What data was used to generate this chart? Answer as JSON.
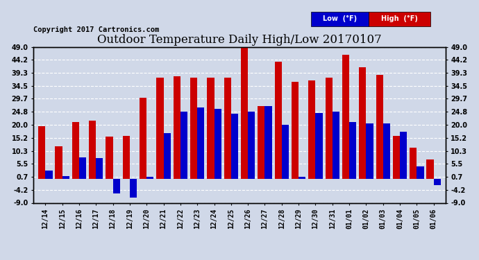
{
  "title": "Outdoor Temperature Daily High/Low 20170107",
  "copyright": "Copyright 2017 Cartronics.com",
  "legend_low": "Low  (°F)",
  "legend_high": "High  (°F)",
  "low_color": "#0000cc",
  "high_color": "#cc0000",
  "background_color": "#d0d8e8",
  "plot_bg_color": "#d0d8e8",
  "grid_color": "#ffffff",
  "dates": [
    "12/14",
    "12/15",
    "12/16",
    "12/17",
    "12/18",
    "12/19",
    "12/20",
    "12/21",
    "12/22",
    "12/23",
    "12/24",
    "12/25",
    "12/26",
    "12/27",
    "12/28",
    "12/29",
    "12/30",
    "12/31",
    "01/01",
    "01/02",
    "01/03",
    "01/04",
    "01/05",
    "01/06"
  ],
  "highs": [
    19.5,
    12.0,
    21.0,
    21.5,
    15.5,
    16.0,
    30.0,
    37.5,
    38.0,
    37.5,
    37.5,
    37.5,
    48.5,
    27.0,
    43.5,
    36.0,
    36.5,
    37.5,
    46.0,
    41.5,
    38.5,
    16.0,
    11.5,
    7.0
  ],
  "lows": [
    3.0,
    1.0,
    8.0,
    7.5,
    -5.5,
    -7.0,
    0.7,
    17.0,
    25.0,
    26.5,
    26.0,
    24.0,
    25.0,
    27.0,
    20.0,
    0.7,
    24.5,
    25.0,
    21.0,
    20.5,
    20.5,
    17.5,
    4.5,
    -2.5
  ],
  "ylim": [
    -9.0,
    49.0
  ],
  "yticks": [
    -9.0,
    -4.2,
    0.7,
    5.5,
    10.3,
    15.2,
    20.0,
    24.8,
    29.7,
    34.5,
    39.3,
    44.2,
    49.0
  ],
  "title_fontsize": 12,
  "tick_fontsize": 7,
  "copyright_fontsize": 7.5
}
